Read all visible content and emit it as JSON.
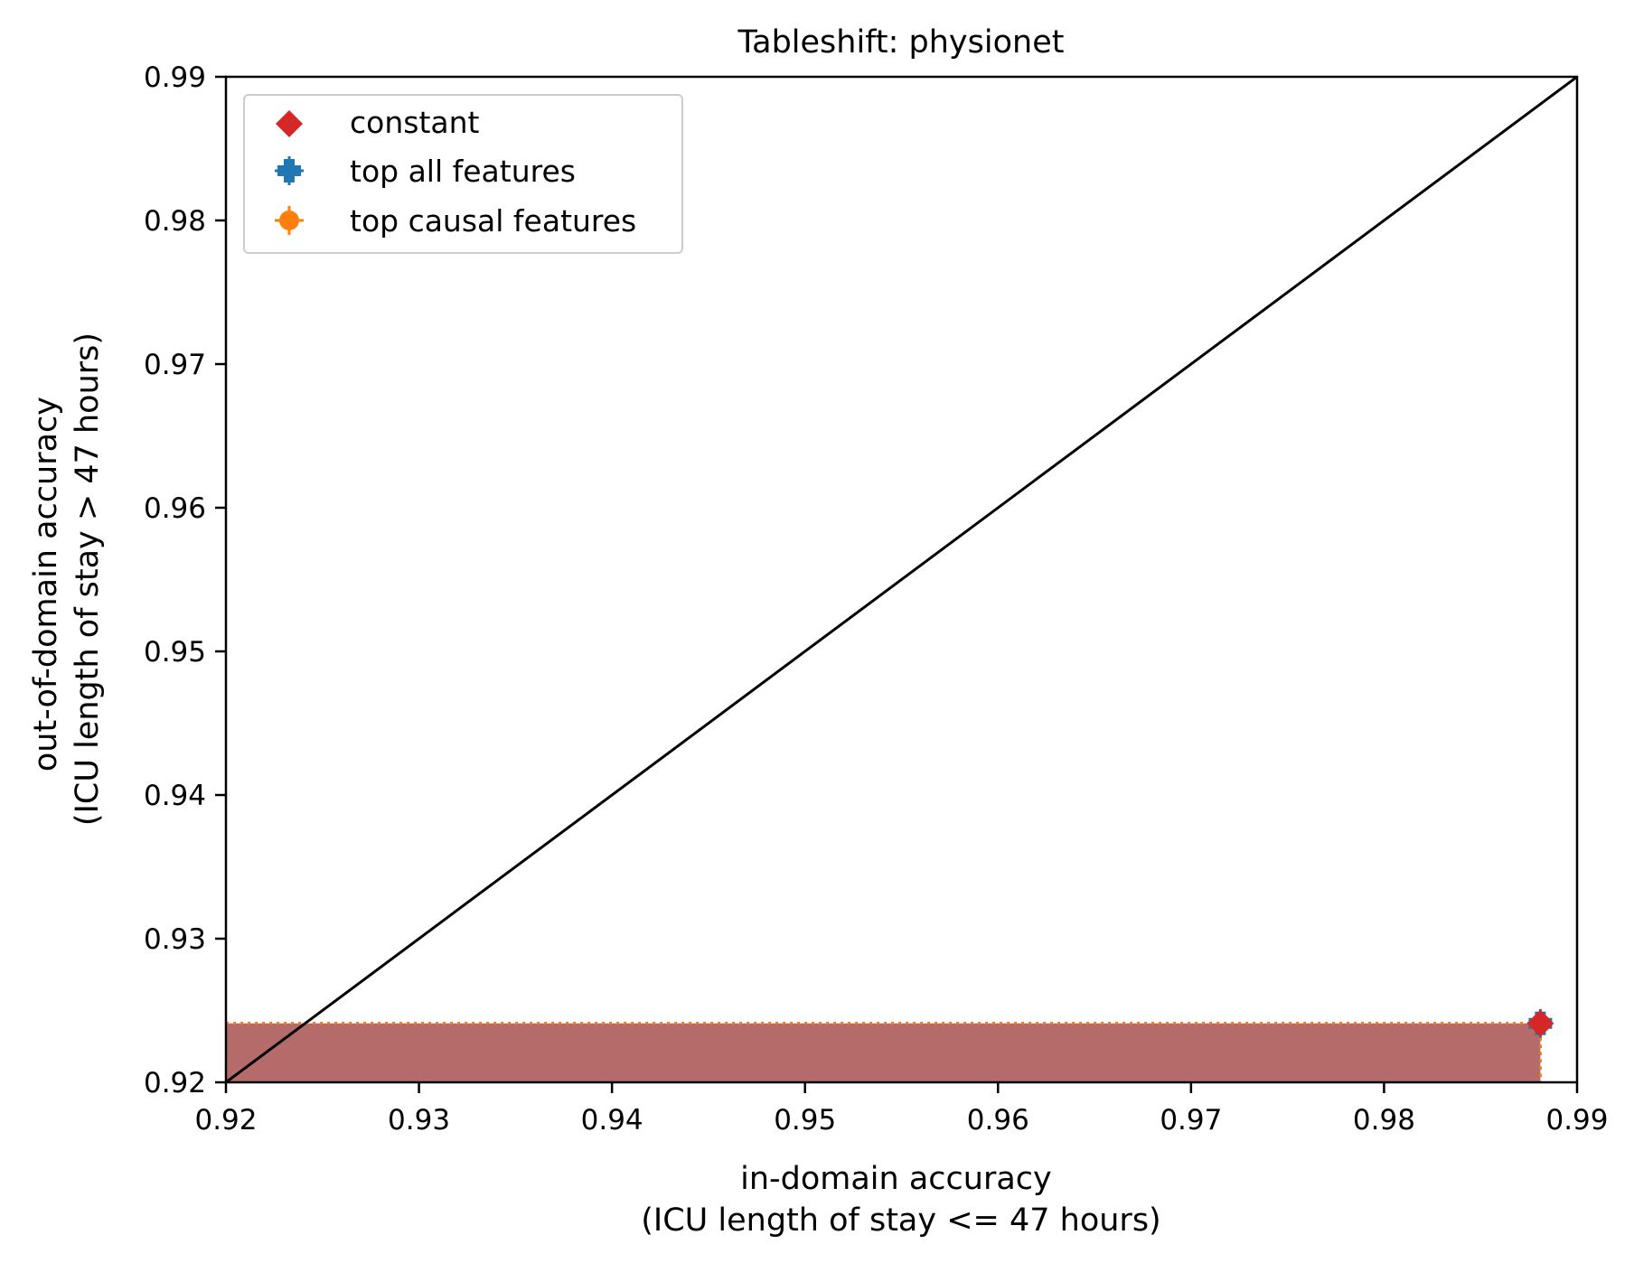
{
  "chart_data": {
    "type": "scatter",
    "title": "Tableshift: physionet",
    "xlabel": [
      "in-domain accuracy",
      "(ICU length of stay <= 47 hours)"
    ],
    "ylabel": [
      "out-of-domain accuracy",
      "(ICU length of stay > 47 hours)"
    ],
    "xlim": [
      0.92,
      0.99
    ],
    "ylim": [
      0.92,
      0.99
    ],
    "xticks": [
      "0.92",
      "0.93",
      "0.94",
      "0.95",
      "0.96",
      "0.97",
      "0.98",
      "0.99"
    ],
    "yticks": [
      "0.92",
      "0.93",
      "0.94",
      "0.95",
      "0.96",
      "0.97",
      "0.98",
      "0.99"
    ],
    "grid": false,
    "legend_position": "top-left",
    "diagonal_line": {
      "from": [
        0.92,
        0.92
      ],
      "to": [
        0.99,
        0.99
      ],
      "color": "#000000"
    },
    "series": [
      {
        "name": "constant",
        "marker": "diamond",
        "color": "#d62728",
        "points": [
          {
            "x": 0.9881,
            "y": 0.9241
          }
        ]
      },
      {
        "name": "top all features",
        "marker": "plus",
        "color": "#1f77b4",
        "points": [
          {
            "x": 0.9881,
            "y": 0.9241,
            "xerr": 0.0004,
            "yerr": 0.001
          }
        ]
      },
      {
        "name": "top causal features",
        "marker": "circle",
        "color": "#ff7f0e",
        "points": [
          {
            "x": 0.9881,
            "y": 0.9241,
            "xerr": 0.0004,
            "yerr": 0.001
          }
        ]
      }
    ],
    "shaded_regions": [
      {
        "series": "top causal features",
        "x_max": 0.9881,
        "y_max": 0.9241,
        "color": "#ff7f0e"
      },
      {
        "series": "top all features",
        "x_max": 0.9881,
        "y_max": 0.9241,
        "color": "#1f77b4"
      },
      {
        "series": "constant",
        "x_max": 0.9881,
        "y_max": 0.9241,
        "color": "#d62728"
      }
    ]
  }
}
